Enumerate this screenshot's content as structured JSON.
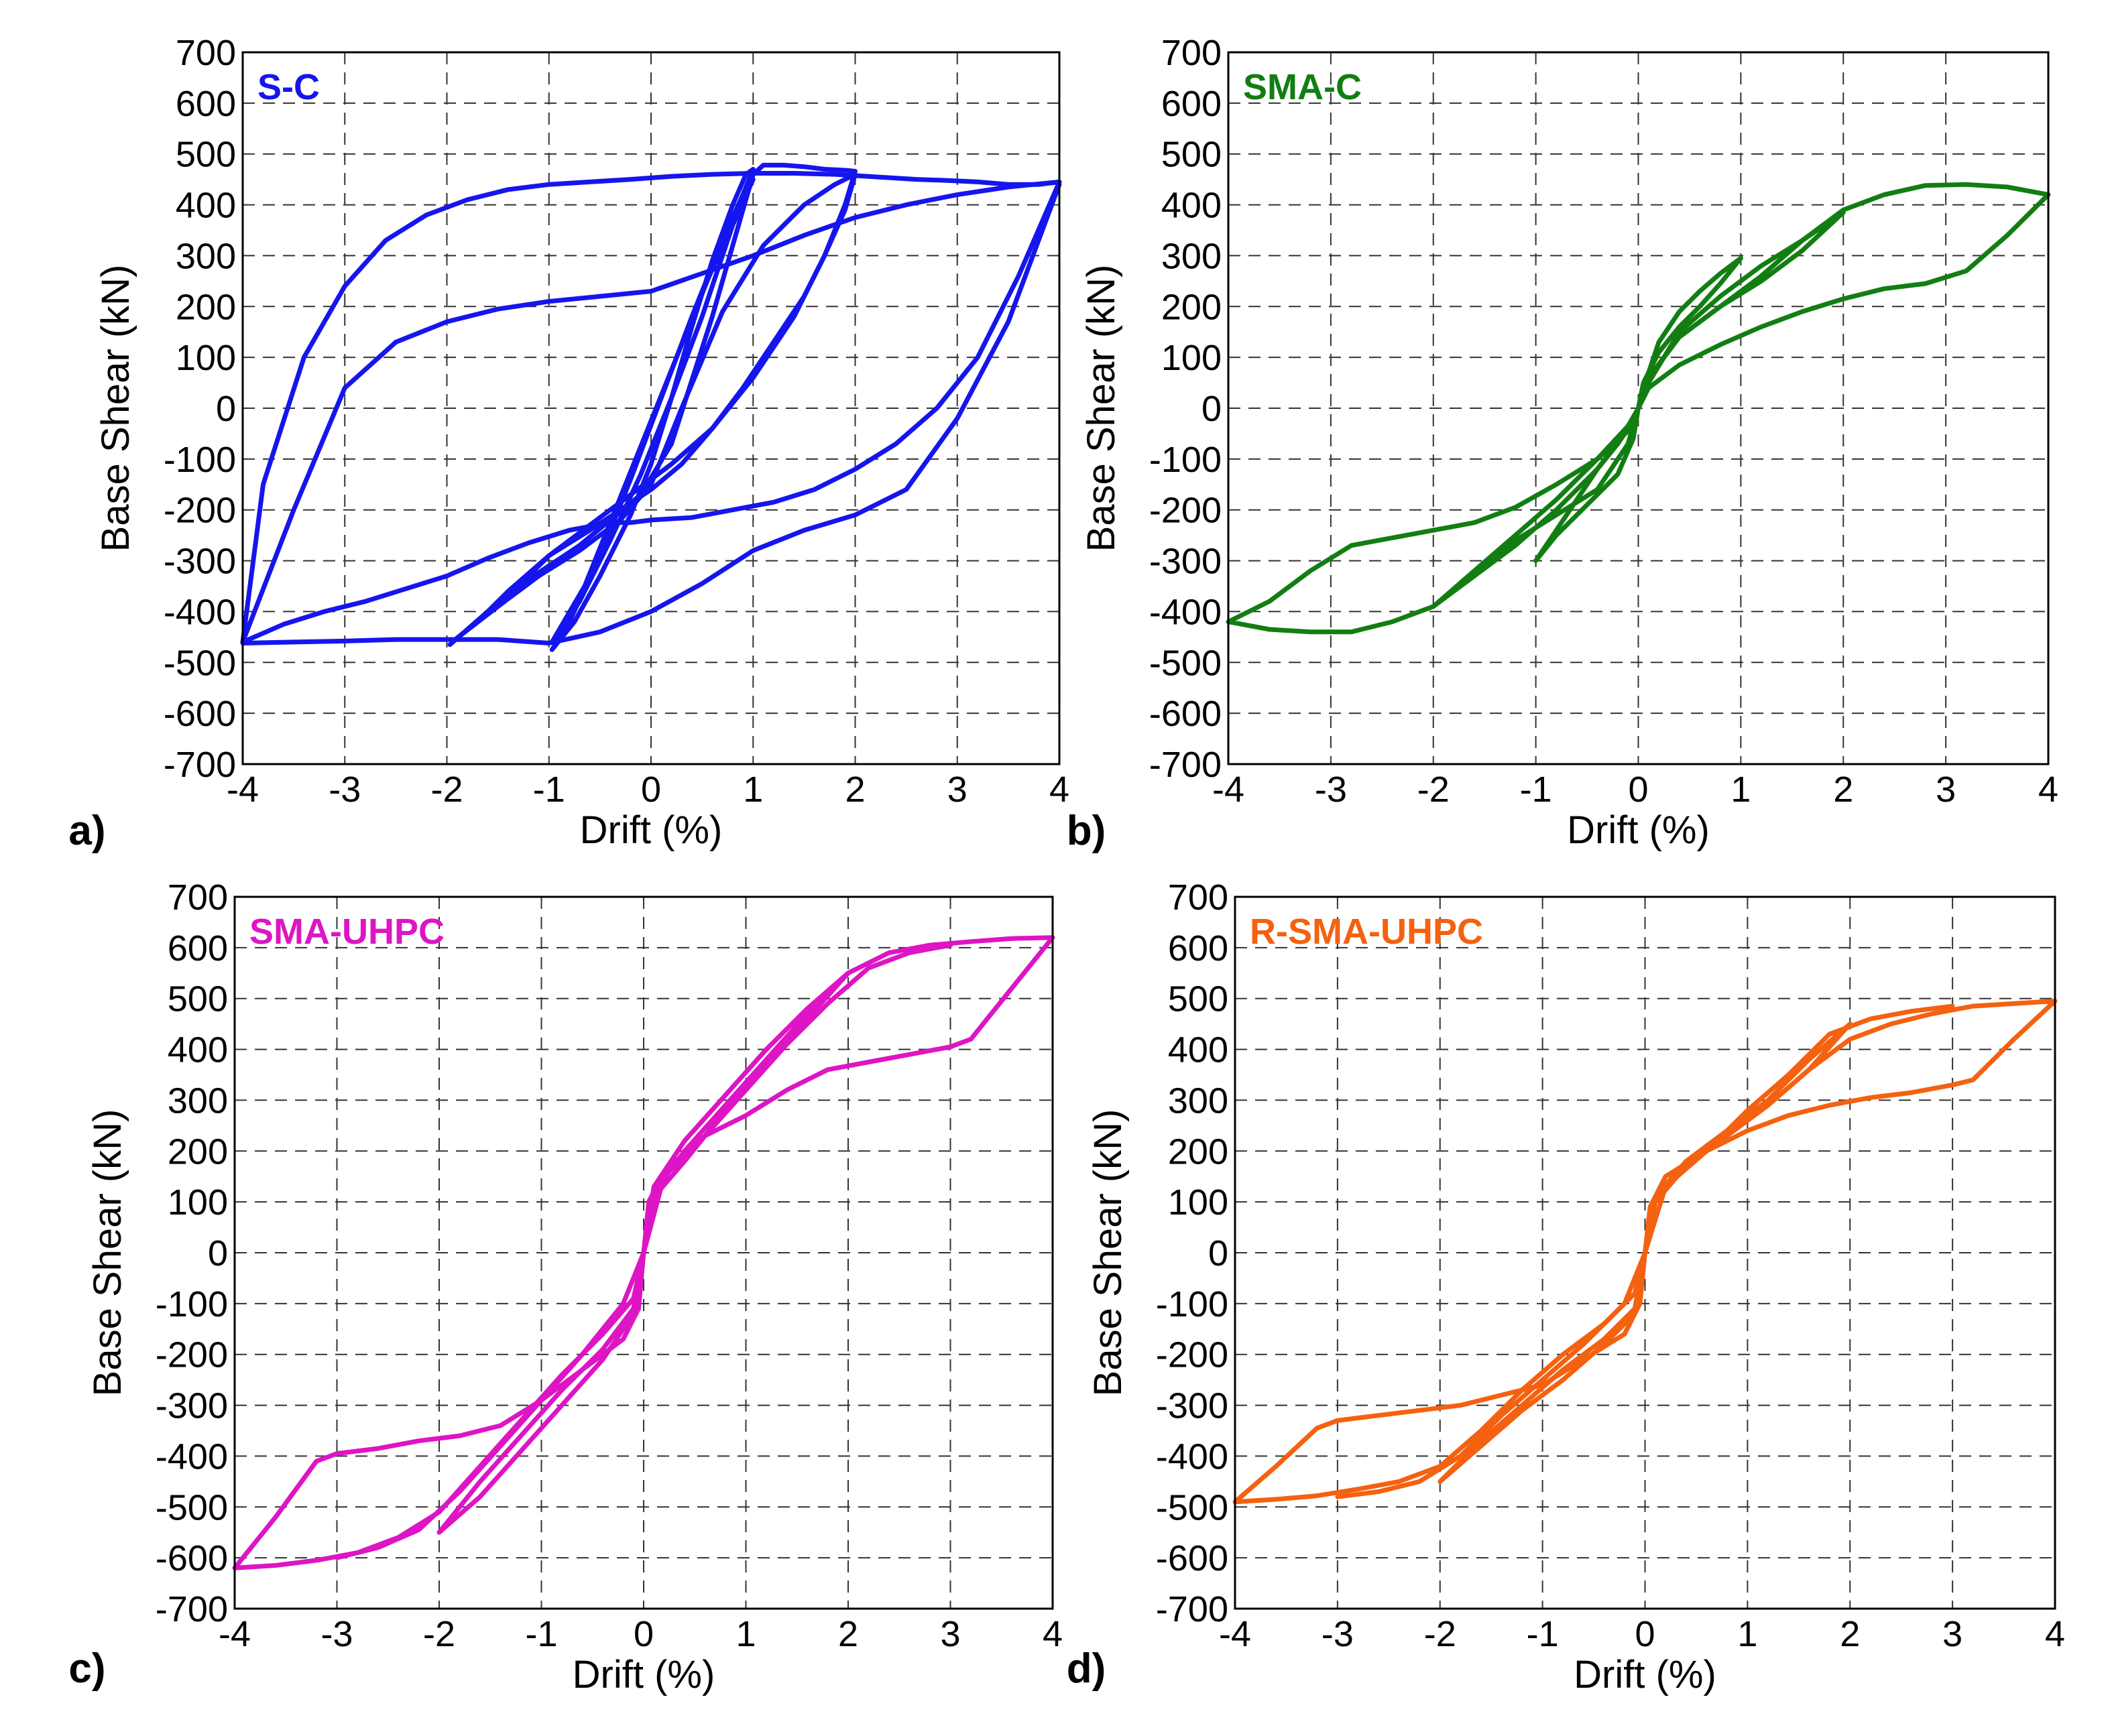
{
  "figure": {
    "panel_letters": [
      "a)",
      "b)",
      "c)",
      "d)"
    ]
  },
  "chart_data": [
    {
      "type": "line",
      "title": "S-C",
      "panel": "a)",
      "color": "#1515ee",
      "xlabel": "Drift (%)",
      "ylabel": "Base Shear (kN)",
      "xlim": [
        -4,
        4
      ],
      "ylim": [
        -700,
        700
      ],
      "xticks": [
        -4,
        -3,
        -2,
        -1,
        0,
        1,
        2,
        3,
        4
      ],
      "yticks": [
        700,
        600,
        500,
        400,
        300,
        200,
        100,
        0,
        -100,
        -200,
        -300,
        -400,
        -500,
        -600,
        -700
      ],
      "grid": true,
      "series": [
        {
          "name": "loop_1pct_cycle1",
          "x": [
            -0.97,
            -0.75,
            -0.5,
            -0.2,
            0,
            0.2,
            0.4,
            0.6,
            0.8,
            0.93,
            1.0,
            0.9,
            0.7,
            0.4,
            0.1,
            -0.2,
            -0.5,
            -0.8,
            -0.97
          ],
          "y": [
            -475,
            -420,
            -330,
            -210,
            -110,
            20,
            160,
            290,
            400,
            460,
            470,
            420,
            330,
            180,
            20,
            -140,
            -290,
            -420,
            -475
          ]
        },
        {
          "name": "loop_1pct_cycle2",
          "x": [
            -0.97,
            -0.7,
            -0.4,
            -0.1,
            0.2,
            0.5,
            0.8,
            1.0,
            0.85,
            0.55,
            0.25,
            -0.05,
            -0.35,
            -0.65,
            -0.97
          ],
          "y": [
            -460,
            -380,
            -260,
            -130,
            20,
            180,
            360,
            450,
            390,
            250,
            100,
            -50,
            -200,
            -350,
            -460
          ]
        },
        {
          "name": "loop_2pct_cycle1",
          "x": [
            -1.97,
            -1.6,
            -1.3,
            -1.0,
            -0.7,
            -0.4,
            -0.1,
            0.2,
            0.6,
            1.0,
            1.1,
            1.3,
            1.5,
            1.7,
            1.9,
            2.0,
            1.9,
            1.7,
            1.5,
            1.2,
            0.9,
            0.6,
            0.3,
            0,
            -0.3,
            -0.6,
            -1.0,
            -1.3,
            -1.6,
            -1.97
          ],
          "y": [
            -465,
            -400,
            -350,
            -310,
            -270,
            -220,
            -170,
            -70,
            180,
            460,
            478,
            478,
            475,
            470,
            468,
            466,
            400,
            300,
            220,
            130,
            40,
            -40,
            -110,
            -160,
            -200,
            -240,
            -290,
            -350,
            -400,
            -465
          ]
        },
        {
          "name": "loop_2pct_cycle2",
          "x": [
            -1.95,
            -1.5,
            -1.1,
            -0.7,
            -0.3,
            0,
            0.3,
            0.7,
            1.1,
            1.5,
            1.8,
            2.0,
            1.9,
            1.7,
            1.4,
            1.0,
            0.6,
            0.2,
            -0.2,
            -0.6,
            -1.0,
            -1.4,
            -1.7,
            -1.95
          ],
          "y": [
            -460,
            -390,
            -330,
            -280,
            -220,
            -150,
            0,
            190,
            320,
            400,
            440,
            460,
            390,
            300,
            180,
            60,
            -40,
            -110,
            -170,
            -230,
            -290,
            -360,
            -420,
            -460
          ]
        },
        {
          "name": "loop_4pct",
          "x": [
            -4.0,
            -3.6,
            -3.2,
            -2.8,
            -2.4,
            -2.0,
            -1.6,
            -1.2,
            -0.8,
            -0.4,
            -0.2,
            0,
            0.4,
            0.8,
            1.2,
            1.6,
            2.0,
            2.4,
            2.8,
            3.2,
            3.6,
            4.0,
            3.8,
            3.5,
            3.2,
            2.9,
            2.6,
            2.2,
            1.8,
            1.4,
            1.0,
            0.6,
            0.2,
            -0.2,
            -0.6,
            -1.0,
            -1.4,
            -1.8,
            -2.2,
            -2.6,
            -3.0,
            -3.4,
            -3.8,
            -4.0
          ],
          "y": [
            -460,
            -425,
            -400,
            -380,
            -355,
            -330,
            -295,
            -265,
            -240,
            -225,
            -225,
            -220,
            -215,
            -200,
            -185,
            -160,
            -120,
            -70,
            0,
            100,
            260,
            445,
            440,
            440,
            445,
            448,
            450,
            455,
            460,
            462,
            462,
            460,
            456,
            450,
            445,
            440,
            430,
            410,
            380,
            330,
            240,
            100,
            -150,
            -460
          ]
        },
        {
          "name": "envelope_top",
          "x": [
            -4.0,
            -3.5,
            -3.0,
            -2.5,
            -2.0,
            -1.5,
            -1.0,
            -0.5,
            0,
            0.5,
            1.0,
            1.5,
            2.0,
            2.5,
            3.0,
            3.5,
            4.0
          ],
          "y": [
            -460,
            -200,
            40,
            130,
            170,
            195,
            210,
            220,
            230,
            265,
            300,
            340,
            375,
            400,
            420,
            435,
            445
          ]
        },
        {
          "name": "envelope_bottom",
          "x": [
            -4.0,
            -3.5,
            -3.0,
            -2.5,
            -2.0,
            -1.5,
            -1.0,
            -0.5,
            0,
            0.5,
            1.0,
            1.5,
            2.0,
            2.5,
            3.0,
            3.5,
            4.0
          ],
          "y": [
            -462,
            -460,
            -458,
            -455,
            -455,
            -455,
            -462,
            -440,
            -400,
            -345,
            -280,
            -240,
            -210,
            -160,
            -20,
            170,
            440
          ]
        }
      ]
    },
    {
      "type": "line",
      "title": "SMA-C",
      "panel": "b)",
      "color": "#127e12",
      "xlabel": "Drift (%)",
      "ylabel": "Base Shear (kN)",
      "xlim": [
        -4,
        4
      ],
      "ylim": [
        -700,
        700
      ],
      "xticks": [
        -4,
        -3,
        -2,
        -1,
        0,
        1,
        2,
        3,
        4
      ],
      "yticks": [
        700,
        600,
        500,
        400,
        300,
        200,
        100,
        0,
        -100,
        -200,
        -300,
        -400,
        -500,
        -600,
        -700
      ],
      "grid": true,
      "series": [
        {
          "name": "loop_1pct",
          "x": [
            -1.0,
            -0.8,
            -0.6,
            -0.4,
            -0.2,
            -0.05,
            0,
            0.05,
            0.2,
            0.4,
            0.6,
            0.8,
            1.0,
            0.8,
            0.6,
            0.4,
            0.2,
            0.05,
            0,
            -0.05,
            -0.2,
            -0.4,
            -0.6,
            -0.8,
            -1.0
          ],
          "y": [
            -300,
            -240,
            -180,
            -120,
            -70,
            -25,
            0,
            40,
            130,
            190,
            230,
            265,
            295,
            245,
            200,
            160,
            110,
            50,
            0,
            -60,
            -130,
            -170,
            -210,
            -250,
            -300
          ]
        },
        {
          "name": "loop_2pct",
          "x": [
            -2.0,
            -1.6,
            -1.2,
            -0.8,
            -0.4,
            -0.1,
            0,
            0.1,
            0.4,
            0.8,
            1.2,
            1.6,
            2.0,
            1.6,
            1.2,
            0.8,
            0.4,
            0.1,
            0,
            -0.1,
            -0.4,
            -0.8,
            -1.2,
            -1.6,
            -2.0
          ],
          "y": [
            -390,
            -320,
            -250,
            -180,
            -100,
            -35,
            0,
            50,
            150,
            220,
            280,
            330,
            385,
            310,
            250,
            200,
            140,
            60,
            0,
            -70,
            -160,
            -210,
            -260,
            -320,
            -390
          ]
        },
        {
          "name": "loop_4pct",
          "x": [
            -4.0,
            -3.6,
            -3.2,
            -2.8,
            -2.4,
            -2.0,
            -1.6,
            -1.2,
            -0.8,
            -0.4,
            -0.1,
            0,
            0.1,
            0.4,
            0.8,
            1.2,
            1.6,
            2.0,
            2.4,
            2.8,
            3.2,
            3.6,
            4.0,
            3.6,
            3.2,
            2.8,
            2.4,
            2.0,
            1.6,
            1.2,
            0.8,
            0.4,
            0.1,
            0,
            -0.1,
            -0.4,
            -0.8,
            -1.2,
            -1.6,
            -2.0,
            -2.4,
            -2.8,
            -3.2,
            -3.6,
            -4.0
          ],
          "y": [
            -420,
            -435,
            -440,
            -440,
            -420,
            -390,
            -330,
            -270,
            -200,
            -120,
            -40,
            0,
            60,
            140,
            200,
            260,
            330,
            390,
            420,
            438,
            440,
            435,
            420,
            340,
            270,
            245,
            235,
            215,
            190,
            160,
            125,
            85,
            40,
            0,
            -45,
            -100,
            -150,
            -195,
            -225,
            -240,
            -255,
            -270,
            -320,
            -380,
            -420
          ]
        }
      ]
    },
    {
      "type": "line",
      "title": "SMA-UHPC",
      "panel": "c)",
      "color": "#dd15c4",
      "xlabel": "Drift (%)",
      "ylabel": "Base Shear (kN)",
      "xlim": [
        -4,
        4
      ],
      "ylim": [
        -700,
        700
      ],
      "xticks": [
        -4,
        -3,
        -2,
        -1,
        0,
        1,
        2,
        3,
        4
      ],
      "yticks": [
        700,
        600,
        500,
        400,
        300,
        200,
        100,
        0,
        -100,
        -200,
        -300,
        -400,
        -500,
        -600,
        -700
      ],
      "grid": true,
      "series": [
        {
          "name": "loop_2pct",
          "x": [
            -2.0,
            -1.6,
            -1.2,
            -0.8,
            -0.4,
            -0.1,
            0,
            0.1,
            0.4,
            0.8,
            1.2,
            1.6,
            2.0,
            1.6,
            1.2,
            0.8,
            0.4,
            0.1,
            0,
            -0.1,
            -0.4,
            -0.8,
            -1.2,
            -1.6,
            -2.0
          ],
          "y": [
            -550,
            -450,
            -360,
            -270,
            -190,
            -110,
            0,
            120,
            200,
            290,
            380,
            470,
            550,
            460,
            370,
            280,
            180,
            110,
            0,
            -120,
            -210,
            -300,
            -390,
            -480,
            -550
          ]
        },
        {
          "name": "loop_4pct",
          "x": [
            -4.0,
            -3.6,
            -3.2,
            -2.8,
            -2.4,
            -2.0,
            -1.6,
            -1.2,
            -0.8,
            -0.4,
            -0.1,
            0,
            0.1,
            0.4,
            0.8,
            1.2,
            1.6,
            2.0,
            2.4,
            2.8,
            3.2,
            3.6,
            4.0,
            3.6,
            3.2,
            3.0,
            2.6,
            2.2,
            1.8,
            1.4,
            1.0,
            0.6,
            0.2,
            0.05,
            0,
            -0.05,
            -0.2,
            -0.6,
            -1.0,
            -1.4,
            -1.8,
            -2.2,
            -2.6,
            -3.0,
            -3.2,
            -3.6,
            -4.0
          ],
          "y": [
            -620,
            -615,
            -605,
            -590,
            -560,
            -510,
            -420,
            -330,
            -240,
            -160,
            -90,
            0,
            130,
            220,
            310,
            400,
            480,
            550,
            590,
            605,
            612,
            618,
            620,
            520,
            420,
            405,
            390,
            375,
            360,
            320,
            270,
            230,
            160,
            100,
            0,
            -110,
            -170,
            -230,
            -290,
            -340,
            -360,
            -370,
            -385,
            -395,
            -410,
            -520,
            -620
          ]
        },
        {
          "name": "loop_3pct_return",
          "x": [
            -3.0,
            -2.6,
            -2.2,
            -1.8,
            -1.4,
            -1.0,
            -0.6,
            -0.2,
            0,
            0.2,
            0.6,
            1.0,
            1.4,
            1.8,
            2.2,
            2.6,
            3.0
          ],
          "y": [
            -600,
            -580,
            -545,
            -470,
            -380,
            -290,
            -200,
            -100,
            0,
            150,
            230,
            320,
            410,
            490,
            560,
            590,
            605
          ]
        }
      ]
    },
    {
      "type": "line",
      "title": "R-SMA-UHPC",
      "panel": "d)",
      "color": "#f46110",
      "xlabel": "Drift (%)",
      "ylabel": "Base Shear (kN)",
      "xlim": [
        -4,
        4
      ],
      "ylim": [
        -700,
        700
      ],
      "xticks": [
        -4,
        -3,
        -2,
        -1,
        0,
        1,
        2,
        3,
        4
      ],
      "yticks": [
        700,
        600,
        500,
        400,
        300,
        200,
        100,
        0,
        -100,
        -200,
        -300,
        -400,
        -500,
        -600,
        -700
      ],
      "grid": true,
      "series": [
        {
          "name": "loop_2pct",
          "x": [
            -2.0,
            -1.6,
            -1.2,
            -0.8,
            -0.4,
            -0.1,
            0,
            0.1,
            0.4,
            0.8,
            1.2,
            1.6,
            2.0,
            1.6,
            1.2,
            0.8,
            0.4,
            0.1,
            0,
            -0.1,
            -0.4,
            -0.8,
            -1.2,
            -1.6,
            -2.0
          ],
          "y": [
            -450,
            -370,
            -300,
            -230,
            -170,
            -110,
            0,
            110,
            180,
            240,
            300,
            380,
            450,
            360,
            290,
            230,
            170,
            105,
            0,
            -120,
            -180,
            -250,
            -310,
            -380,
            -450
          ]
        },
        {
          "name": "loop_4pct",
          "x": [
            -4.0,
            -3.6,
            -3.2,
            -2.8,
            -2.4,
            -2.0,
            -1.6,
            -1.2,
            -0.8,
            -0.4,
            -0.1,
            0,
            0.1,
            0.4,
            0.8,
            1.2,
            1.6,
            2.0,
            2.4,
            2.8,
            3.2,
            3.6,
            4.0,
            3.6,
            3.2,
            3.0,
            2.6,
            2.2,
            1.8,
            1.4,
            1.0,
            0.6,
            0.2,
            0.05,
            0,
            -0.05,
            -0.2,
            -0.6,
            -1.0,
            -1.4,
            -1.8,
            -2.2,
            -2.6,
            -3.0,
            -3.2,
            -3.6,
            -4.0
          ],
          "y": [
            -490,
            -485,
            -478,
            -465,
            -450,
            -420,
            -350,
            -270,
            -200,
            -140,
            -80,
            0,
            100,
            170,
            230,
            290,
            360,
            420,
            450,
            470,
            485,
            490,
            495,
            420,
            340,
            330,
            315,
            305,
            290,
            270,
            240,
            200,
            150,
            90,
            0,
            -100,
            -160,
            -210,
            -260,
            -280,
            -300,
            -310,
            -320,
            -330,
            -345,
            -420,
            -490
          ]
        },
        {
          "name": "loop_3pct_return",
          "x": [
            -3.0,
            -2.6,
            -2.2,
            -1.8,
            -1.4,
            -1.0,
            -0.6,
            -0.2,
            0,
            0.2,
            0.6,
            1.0,
            1.4,
            1.8,
            2.2,
            2.6,
            3.0
          ],
          "y": [
            -480,
            -470,
            -450,
            -400,
            -320,
            -250,
            -180,
            -100,
            0,
            130,
            200,
            280,
            350,
            430,
            460,
            475,
            485
          ]
        }
      ]
    }
  ]
}
